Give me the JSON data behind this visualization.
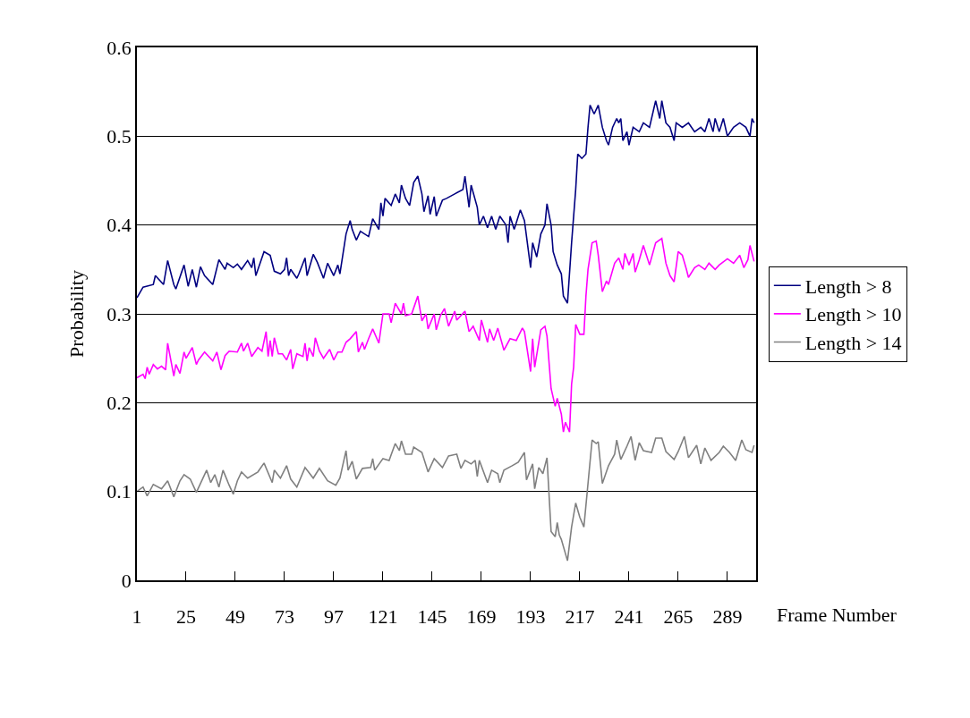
{
  "chart_data": {
    "type": "line",
    "xlabel": "Frame Number",
    "ylabel": "Probability",
    "xlim": [
      1,
      303
    ],
    "xticks": [
      1,
      25,
      49,
      73,
      97,
      121,
      145,
      169,
      193,
      217,
      241,
      265,
      289
    ],
    "ylim": [
      0,
      0.6
    ],
    "yticks": [
      0,
      0.1,
      0.2,
      0.3,
      0.4,
      0.5,
      0.6
    ],
    "grid": "y",
    "legend": "right",
    "marker": "none",
    "line_style": "solid",
    "series": [
      {
        "name": "Length > 8",
        "color": "#000080",
        "x": [
          1,
          4,
          9,
          10,
          14,
          16,
          19,
          20,
          24,
          26,
          28,
          30,
          32,
          34,
          38,
          41,
          44,
          45,
          48,
          50,
          52,
          55,
          57,
          58,
          59,
          63,
          66,
          68,
          71,
          73,
          74,
          75,
          76,
          79,
          80,
          83,
          84,
          87,
          89,
          92,
          94,
          97,
          99,
          100,
          103,
          105,
          106,
          108,
          110,
          114,
          116,
          119,
          120,
          121,
          122,
          125,
          127,
          129,
          130,
          132,
          134,
          136,
          138,
          140,
          141,
          143,
          144,
          146,
          147,
          150,
          152,
          156,
          160,
          161,
          163,
          164,
          167,
          168,
          170,
          172,
          174,
          176,
          178,
          181,
          182,
          183,
          185,
          188,
          190,
          193,
          194,
          196,
          198,
          200,
          201,
          203,
          204,
          206,
          208,
          209,
          211,
          213,
          215,
          216,
          218,
          220,
          221,
          222,
          224,
          226,
          228,
          230,
          231,
          233,
          235,
          236,
          237,
          238,
          240,
          241,
          243,
          246,
          248,
          251,
          253,
          254,
          256,
          257,
          259,
          261,
          263,
          264,
          267,
          270,
          273,
          276,
          278,
          280,
          282,
          283,
          285,
          287,
          289,
          292,
          295,
          298,
          300,
          301,
          302
        ],
        "values": [
          0.318,
          0.33,
          0.333,
          0.343,
          0.333,
          0.36,
          0.333,
          0.328,
          0.355,
          0.331,
          0.35,
          0.33,
          0.353,
          0.343,
          0.333,
          0.361,
          0.35,
          0.357,
          0.352,
          0.356,
          0.35,
          0.36,
          0.352,
          0.363,
          0.343,
          0.37,
          0.366,
          0.348,
          0.345,
          0.35,
          0.363,
          0.343,
          0.35,
          0.34,
          0.345,
          0.363,
          0.343,
          0.367,
          0.358,
          0.34,
          0.357,
          0.343,
          0.355,
          0.345,
          0.39,
          0.405,
          0.395,
          0.383,
          0.393,
          0.387,
          0.407,
          0.395,
          0.425,
          0.41,
          0.43,
          0.422,
          0.435,
          0.425,
          0.445,
          0.43,
          0.422,
          0.448,
          0.455,
          0.435,
          0.415,
          0.433,
          0.412,
          0.432,
          0.41,
          0.428,
          0.43,
          0.435,
          0.44,
          0.455,
          0.42,
          0.445,
          0.42,
          0.4,
          0.41,
          0.397,
          0.41,
          0.395,
          0.41,
          0.4,
          0.38,
          0.41,
          0.395,
          0.417,
          0.405,
          0.352,
          0.38,
          0.364,
          0.39,
          0.4,
          0.424,
          0.4,
          0.37,
          0.355,
          0.345,
          0.32,
          0.312,
          0.38,
          0.44,
          0.48,
          0.475,
          0.48,
          0.51,
          0.535,
          0.525,
          0.535,
          0.51,
          0.495,
          0.49,
          0.51,
          0.52,
          0.515,
          0.52,
          0.495,
          0.505,
          0.49,
          0.51,
          0.505,
          0.515,
          0.51,
          0.53,
          0.54,
          0.52,
          0.54,
          0.515,
          0.51,
          0.495,
          0.515,
          0.51,
          0.515,
          0.505,
          0.51,
          0.505,
          0.52,
          0.505,
          0.52,
          0.505,
          0.52,
          0.5,
          0.51,
          0.515,
          0.51,
          0.5,
          0.52,
          0.515
        ]
      },
      {
        "name": "Length > 10",
        "color": "#ff00ff",
        "x": [
          1,
          4,
          5,
          6,
          7,
          9,
          11,
          13,
          15,
          16,
          19,
          20,
          22,
          24,
          25,
          28,
          30,
          31,
          34,
          38,
          40,
          42,
          44,
          46,
          50,
          52,
          53,
          55,
          57,
          60,
          62,
          64,
          65,
          66,
          67,
          68,
          70,
          72,
          74,
          76,
          77,
          79,
          82,
          83,
          84,
          85,
          87,
          88,
          90,
          92,
          95,
          97,
          99,
          101,
          103,
          105,
          108,
          109,
          111,
          112,
          114,
          116,
          119,
          121,
          124,
          125,
          127,
          130,
          131,
          132,
          135,
          138,
          140,
          142,
          143,
          146,
          147,
          149,
          151,
          153,
          156,
          157,
          161,
          163,
          165,
          168,
          169,
          172,
          173,
          175,
          177,
          180,
          183,
          186,
          189,
          190,
          193,
          194,
          195,
          198,
          200,
          201,
          203,
          205,
          206,
          208,
          209,
          210,
          212,
          213,
          214,
          215,
          217,
          219,
          220,
          221,
          223,
          225,
          226,
          228,
          230,
          231,
          234,
          236,
          238,
          239,
          241,
          243,
          244,
          246,
          248,
          251,
          254,
          257,
          259,
          261,
          263,
          265,
          267,
          269,
          270,
          273,
          275,
          278,
          280,
          283,
          285,
          289,
          292,
          295,
          297,
          299,
          300,
          302
        ],
        "values": [
          0.228,
          0.232,
          0.227,
          0.24,
          0.232,
          0.243,
          0.238,
          0.241,
          0.237,
          0.267,
          0.23,
          0.243,
          0.233,
          0.257,
          0.25,
          0.262,
          0.243,
          0.248,
          0.257,
          0.247,
          0.257,
          0.237,
          0.253,
          0.258,
          0.257,
          0.267,
          0.258,
          0.267,
          0.252,
          0.262,
          0.258,
          0.28,
          0.252,
          0.27,
          0.252,
          0.273,
          0.255,
          0.255,
          0.248,
          0.26,
          0.238,
          0.255,
          0.252,
          0.267,
          0.247,
          0.262,
          0.252,
          0.273,
          0.258,
          0.25,
          0.26,
          0.248,
          0.257,
          0.257,
          0.268,
          0.272,
          0.28,
          0.257,
          0.268,
          0.26,
          0.272,
          0.283,
          0.267,
          0.3,
          0.3,
          0.29,
          0.312,
          0.3,
          0.312,
          0.298,
          0.3,
          0.32,
          0.292,
          0.3,
          0.283,
          0.3,
          0.282,
          0.298,
          0.306,
          0.286,
          0.303,
          0.293,
          0.303,
          0.28,
          0.286,
          0.27,
          0.293,
          0.268,
          0.283,
          0.27,
          0.284,
          0.259,
          0.272,
          0.27,
          0.284,
          0.28,
          0.235,
          0.272,
          0.24,
          0.282,
          0.286,
          0.275,
          0.216,
          0.196,
          0.205,
          0.187,
          0.167,
          0.178,
          0.167,
          0.221,
          0.24,
          0.288,
          0.277,
          0.277,
          0.32,
          0.35,
          0.38,
          0.382,
          0.366,
          0.325,
          0.337,
          0.333,
          0.357,
          0.363,
          0.35,
          0.368,
          0.355,
          0.368,
          0.347,
          0.361,
          0.377,
          0.355,
          0.38,
          0.385,
          0.357,
          0.343,
          0.336,
          0.37,
          0.366,
          0.35,
          0.341,
          0.352,
          0.355,
          0.35,
          0.357,
          0.35,
          0.355,
          0.362,
          0.357,
          0.366,
          0.352,
          0.361,
          0.377,
          0.359
        ]
      },
      {
        "name": "Length > 14",
        "color": "#808080",
        "x": [
          1,
          4,
          6,
          9,
          13,
          16,
          19,
          22,
          24,
          27,
          30,
          35,
          37,
          39,
          41,
          43,
          46,
          48,
          50,
          52,
          55,
          60,
          63,
          67,
          68,
          71,
          74,
          76,
          79,
          83,
          87,
          90,
          94,
          98,
          100,
          103,
          104,
          106,
          108,
          111,
          115,
          116,
          117,
          121,
          124,
          127,
          129,
          130,
          132,
          135,
          136,
          140,
          143,
          146,
          150,
          153,
          157,
          159,
          161,
          164,
          166,
          167,
          168,
          172,
          174,
          177,
          178,
          180,
          184,
          187,
          190,
          191,
          194,
          195,
          197,
          199,
          201,
          203,
          205,
          206,
          207,
          208,
          211,
          213,
          215,
          217,
          219,
          221,
          223,
          225,
          226,
          228,
          231,
          234,
          235,
          237,
          240,
          242,
          244,
          246,
          248,
          252,
          254,
          257,
          259,
          263,
          265,
          268,
          270,
          274,
          276,
          278,
          281,
          285,
          287,
          290,
          293,
          296,
          298,
          301,
          302
        ],
        "values": [
          0.1,
          0.105,
          0.095,
          0.108,
          0.103,
          0.112,
          0.094,
          0.112,
          0.119,
          0.114,
          0.099,
          0.124,
          0.11,
          0.119,
          0.105,
          0.124,
          0.107,
          0.097,
          0.112,
          0.122,
          0.115,
          0.122,
          0.132,
          0.11,
          0.124,
          0.115,
          0.129,
          0.114,
          0.105,
          0.127,
          0.115,
          0.126,
          0.112,
          0.107,
          0.115,
          0.146,
          0.124,
          0.134,
          0.114,
          0.126,
          0.127,
          0.137,
          0.124,
          0.137,
          0.135,
          0.154,
          0.146,
          0.157,
          0.142,
          0.142,
          0.15,
          0.144,
          0.122,
          0.137,
          0.127,
          0.14,
          0.142,
          0.126,
          0.135,
          0.131,
          0.135,
          0.117,
          0.135,
          0.11,
          0.124,
          0.12,
          0.11,
          0.124,
          0.129,
          0.133,
          0.144,
          0.113,
          0.131,
          0.103,
          0.127,
          0.12,
          0.138,
          0.055,
          0.049,
          0.065,
          0.051,
          0.046,
          0.022,
          0.06,
          0.087,
          0.071,
          0.06,
          0.109,
          0.158,
          0.154,
          0.156,
          0.109,
          0.129,
          0.142,
          0.158,
          0.136,
          0.151,
          0.162,
          0.135,
          0.155,
          0.146,
          0.144,
          0.16,
          0.16,
          0.145,
          0.136,
          0.145,
          0.162,
          0.138,
          0.152,
          0.131,
          0.149,
          0.135,
          0.144,
          0.151,
          0.144,
          0.135,
          0.158,
          0.147,
          0.144,
          0.152
        ]
      }
    ]
  }
}
